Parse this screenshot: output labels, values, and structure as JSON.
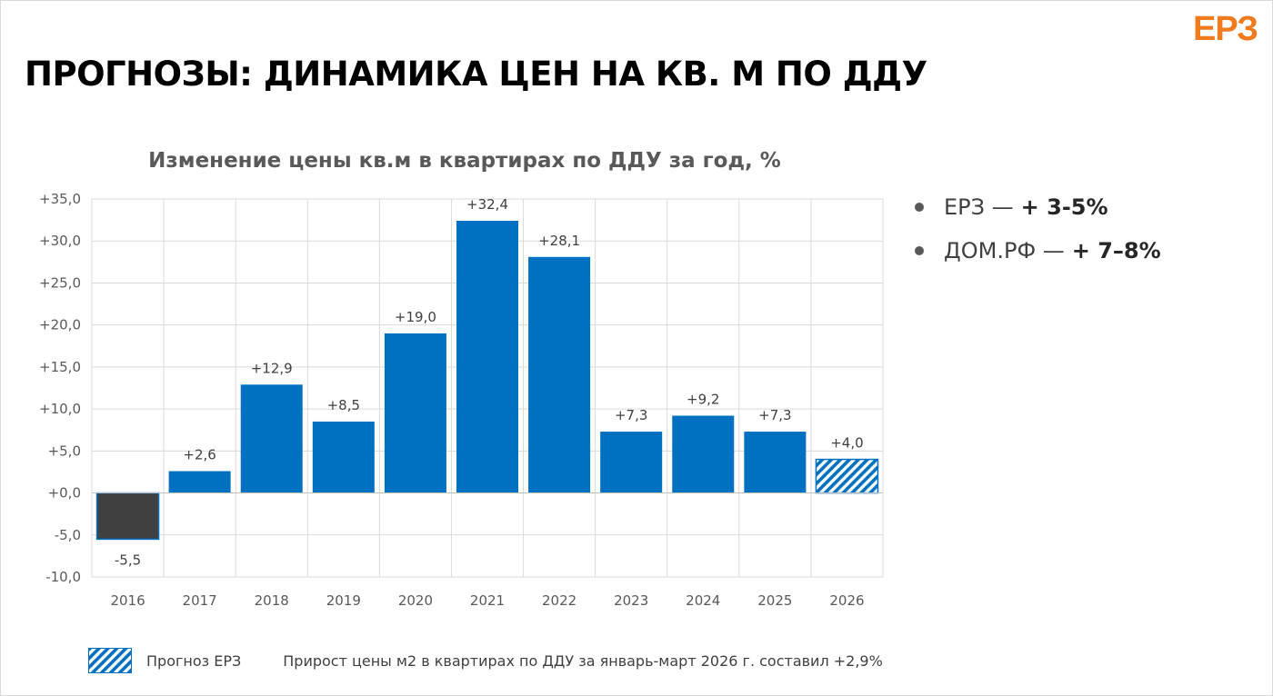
{
  "brand": {
    "logo_text": "ЕРЗ",
    "logo_color": "#f07b1f"
  },
  "page": {
    "title": "ПРОГНОЗЫ: ДИНАМИКА ЦЕН НА КВ. М ПО ДДУ"
  },
  "chart_data": {
    "type": "bar",
    "title": "Изменение цены кв.м в квартирах по ДДУ за год, %",
    "xlabel": "",
    "ylabel": "",
    "categories": [
      "2016",
      "2017",
      "2018",
      "2019",
      "2020",
      "2021",
      "2022",
      "2023",
      "2024",
      "2025",
      "2026"
    ],
    "values": [
      -5.5,
      2.6,
      12.9,
      8.5,
      19.0,
      32.4,
      28.1,
      7.3,
      9.2,
      7.3,
      4.0
    ],
    "data_labels": [
      "-5,5",
      "+2,6",
      "+12,9",
      "+8,5",
      "+19,0",
      "+32,4",
      "+28,1",
      "+7,3",
      "+9,2",
      "+7,3",
      "+4,0"
    ],
    "bar_styles": [
      "negative",
      "actual",
      "actual",
      "actual",
      "actual",
      "actual",
      "actual",
      "actual",
      "actual",
      "actual",
      "forecast"
    ],
    "ylim": [
      -10,
      35
    ],
    "yticks": [
      35,
      30,
      25,
      20,
      15,
      10,
      5,
      0,
      -5,
      -10
    ],
    "ytick_labels": [
      "+35,0",
      "+30,0",
      "+25,0",
      "+20,0",
      "+15,0",
      "+10,0",
      "+5,0",
      "+0,0",
      "-5,0",
      "-10,0"
    ],
    "grid": true,
    "legend_placement": "bottom-left",
    "colors": {
      "actual": "#0070c0",
      "negative": "#404040",
      "forecast_stripe": "#0070c0",
      "grid": "#d9d9d9"
    }
  },
  "forecasts": [
    {
      "source": "ЕРЗ —",
      "value": "+ 3-5%"
    },
    {
      "source": "ДОМ.РФ —",
      "value": "+ 7–8%"
    }
  ],
  "legend": {
    "forecast_label": "Прогноз ЕРЗ"
  },
  "footnote": "Прирост цены м2 в квартирах по ДДУ за январь-март 2026 г. составил +2,9%"
}
